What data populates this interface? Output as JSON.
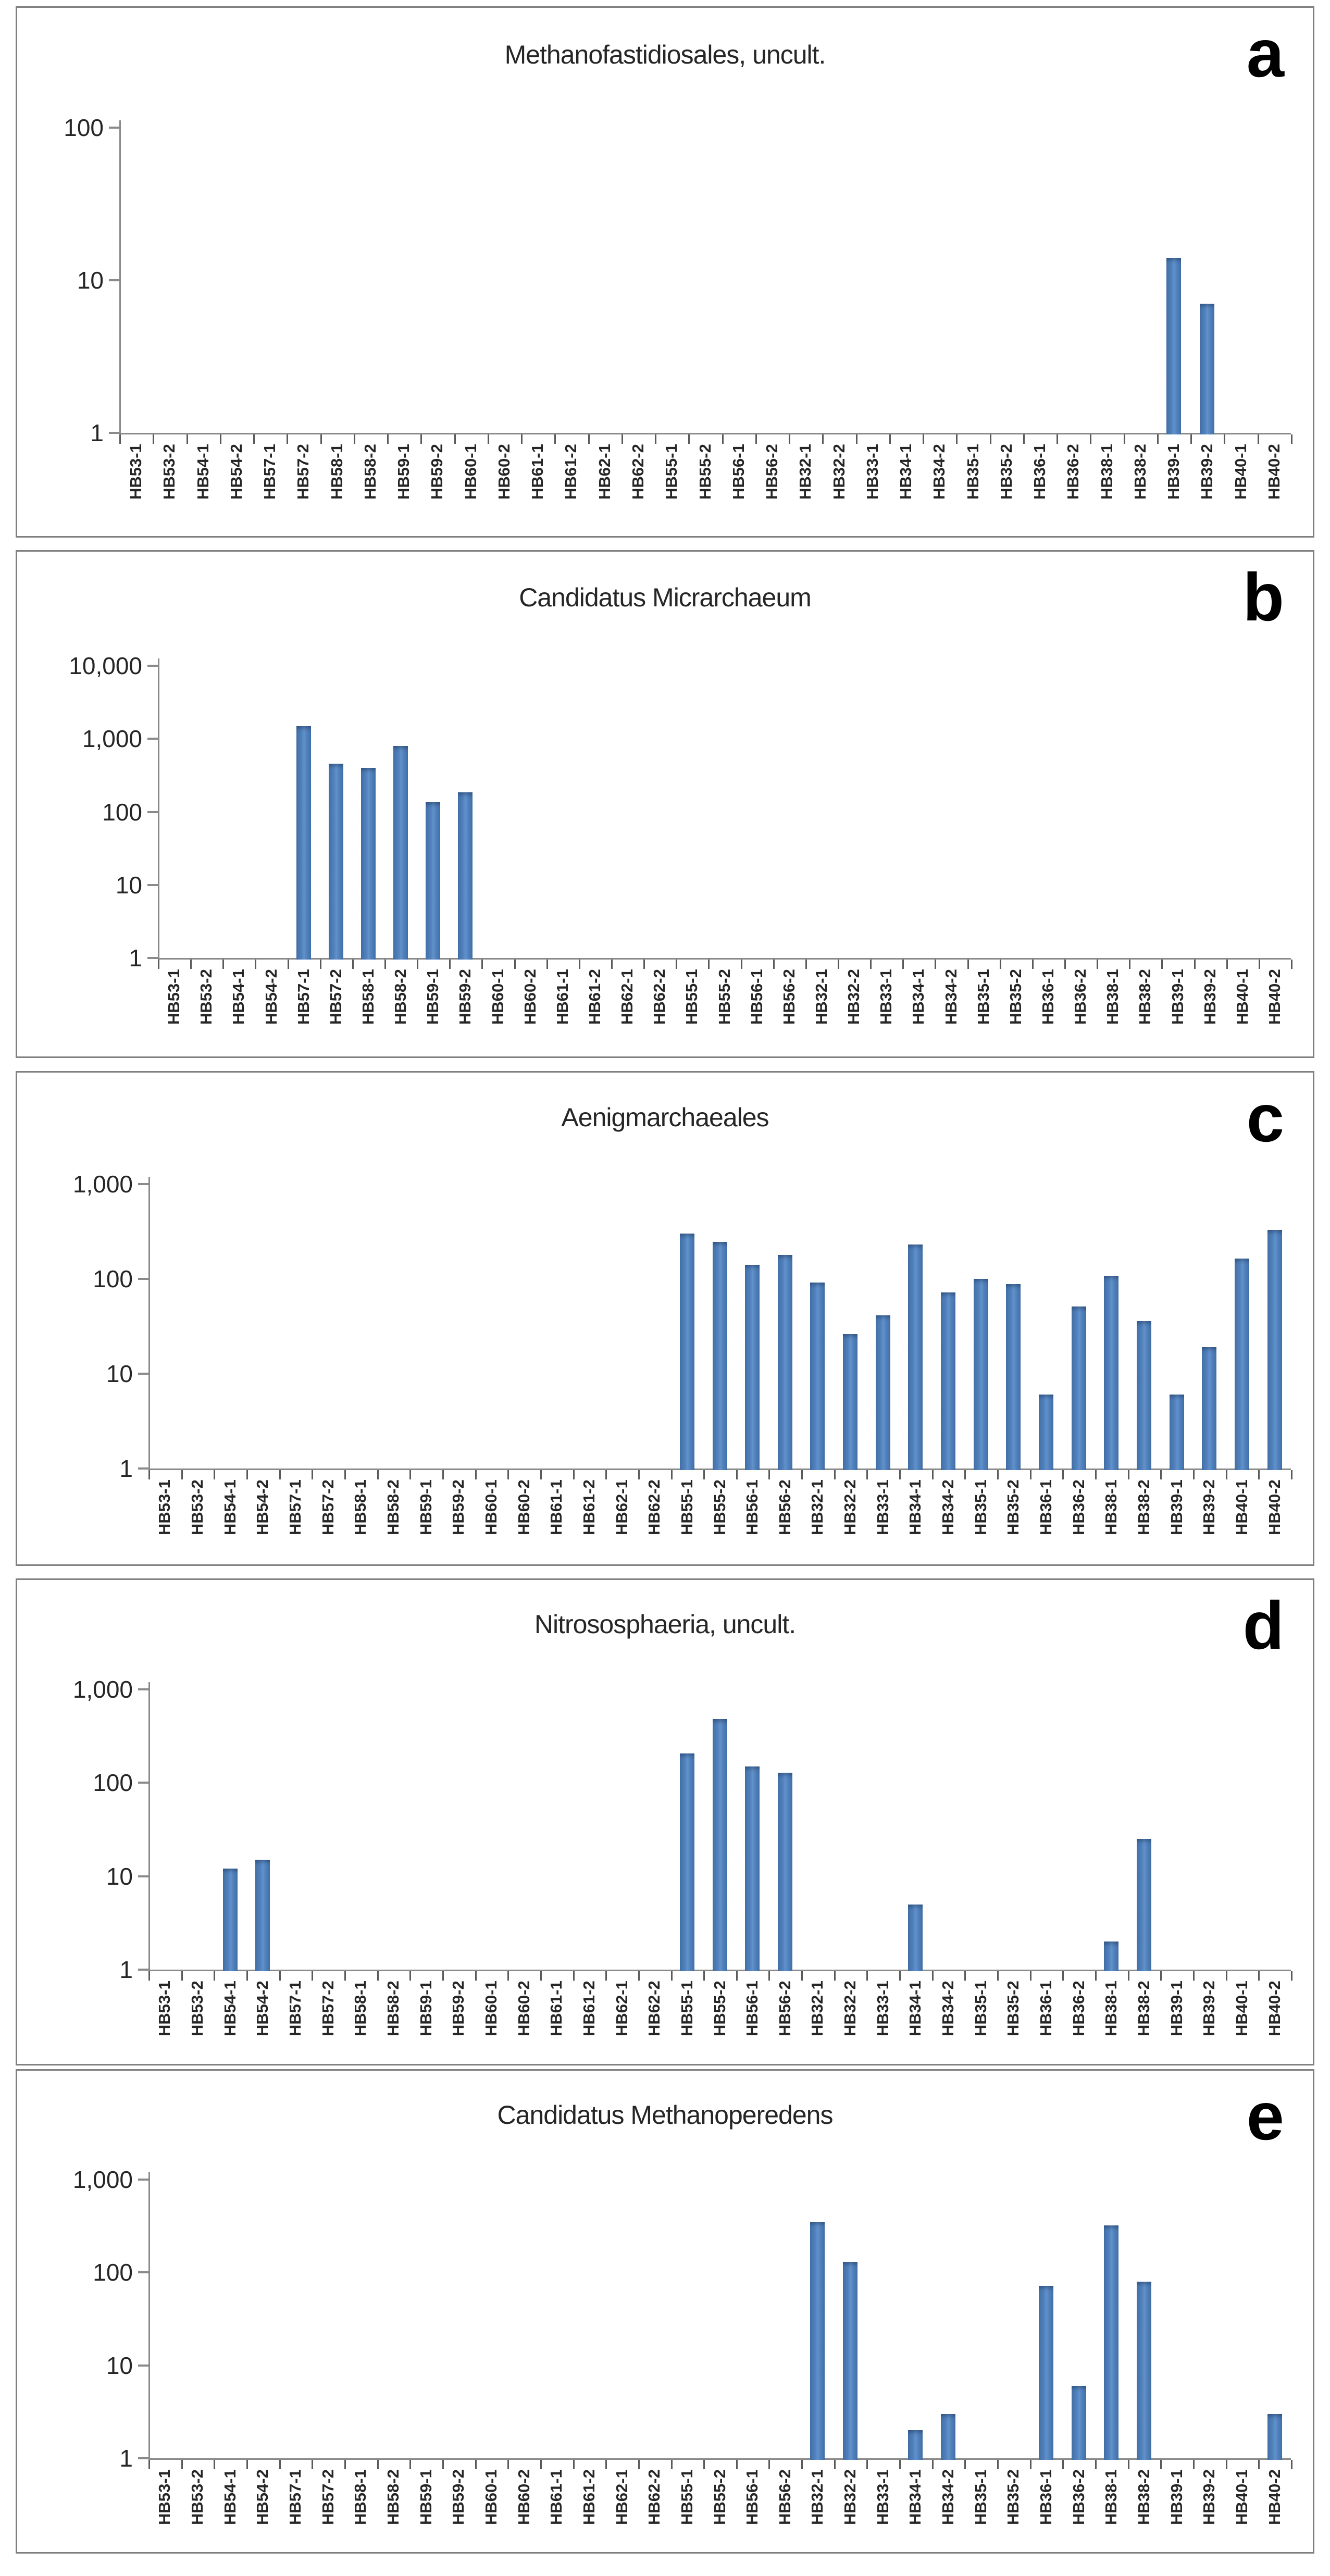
{
  "style": {
    "bar_color": "#4f81bd",
    "bar_edge_color": "#426fa5",
    "axis_color": "#8a8a8a",
    "x_tick_color": "#5a5a5a",
    "panel_border_color": "#808080",
    "title_color": "#262626",
    "label_color": "#262626",
    "letter_color": "#000000",
    "background": "#ffffff"
  },
  "chart_data": {
    "type": "bar",
    "yscale": "log",
    "grid": false,
    "legend": false,
    "categories": [
      "HB53-1",
      "HB53-2",
      "HB54-1",
      "HB54-2",
      "HB57-1",
      "HB57-2",
      "HB58-1",
      "HB58-2",
      "HB59-1",
      "HB59-2",
      "HB60-1",
      "HB60-2",
      "HB61-1",
      "HB61-2",
      "HB62-1",
      "HB62-2",
      "HB55-1",
      "HB55-2",
      "HB56-1",
      "HB56-2",
      "HB32-1",
      "HB32-2",
      "HB33-1",
      "HB34-1",
      "HB34-2",
      "HB35-1",
      "HB35-2",
      "HB36-1",
      "HB36-2",
      "HB38-1",
      "HB38-2",
      "HB39-1",
      "HB39-2",
      "HB40-1",
      "HB40-2"
    ],
    "panels": [
      {
        "letter": "a",
        "title": "Methanofastidiosales, uncult.",
        "ylim": [
          1,
          100
        ],
        "y_tick_labels": [
          "1",
          "10",
          "100"
        ],
        "values": [
          0,
          0,
          0,
          0,
          0,
          0,
          0,
          0,
          0,
          0,
          0,
          0,
          0,
          0,
          0,
          0,
          0,
          0,
          0,
          0,
          0,
          0,
          0,
          0,
          0,
          0,
          0,
          0,
          0,
          0,
          0,
          14,
          7,
          0,
          0
        ]
      },
      {
        "letter": "b",
        "title": "Candidatus Micrarchaeum",
        "ylim": [
          1,
          10000
        ],
        "y_tick_labels": [
          "1",
          "10",
          "100",
          "1,000",
          "10,000"
        ],
        "values": [
          0,
          0,
          0,
          0,
          1500,
          455,
          400,
          800,
          135,
          185,
          0,
          0,
          0,
          0,
          0,
          0,
          0,
          0,
          0,
          0,
          0,
          0,
          0,
          0,
          0,
          0,
          0,
          0,
          0,
          0,
          0,
          0,
          0,
          0,
          0
        ]
      },
      {
        "letter": "c",
        "title": "Aenigmarchaeales",
        "ylim": [
          1,
          1000
        ],
        "y_tick_labels": [
          "1",
          "10",
          "100",
          "1,000"
        ],
        "values": [
          0,
          0,
          0,
          0,
          0,
          0,
          0,
          0,
          0,
          0,
          0,
          0,
          0,
          0,
          0,
          0,
          300,
          245,
          140,
          180,
          92,
          26,
          41,
          230,
          72,
          100,
          88,
          6,
          51,
          108,
          36,
          6,
          19,
          163,
          330
        ]
      },
      {
        "letter": "d",
        "title": "Nitrososphaeria, uncult.",
        "ylim": [
          1,
          1000
        ],
        "y_tick_labels": [
          "1",
          "10",
          "100",
          "1,000"
        ],
        "values": [
          0,
          0,
          12,
          15,
          0,
          0,
          0,
          0,
          0,
          0,
          0,
          0,
          0,
          0,
          0,
          0,
          205,
          480,
          150,
          128,
          0,
          0,
          0,
          5,
          0,
          0,
          0,
          0,
          0,
          2,
          25,
          0,
          0,
          0,
          0
        ]
      },
      {
        "letter": "e",
        "title": "Candidatus Methanoperedens",
        "ylim": [
          1,
          1000
        ],
        "y_tick_labels": [
          "1",
          "10",
          "100",
          "1,000"
        ],
        "values": [
          0,
          0,
          0,
          0,
          0,
          0,
          0,
          0,
          0,
          0,
          0,
          0,
          0,
          0,
          0,
          0,
          0,
          0,
          0,
          0,
          350,
          130,
          0,
          2,
          3,
          0,
          0,
          72,
          6,
          320,
          80,
          0,
          0,
          0,
          3
        ]
      }
    ]
  }
}
